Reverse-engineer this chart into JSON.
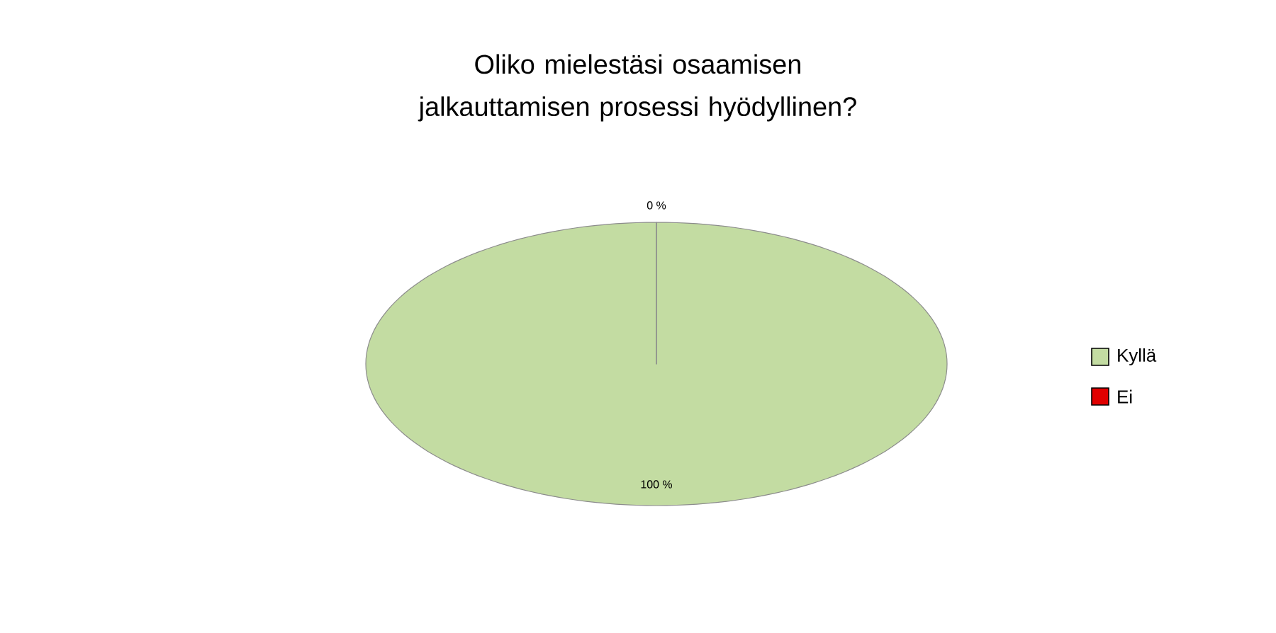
{
  "chart_data": {
    "type": "pie",
    "title": "Oliko mielestäsi osaamisen jalkauttamisen prosessi hyödyllinen?",
    "categories": [
      "Kyllä",
      "Ei"
    ],
    "values": [
      100,
      0
    ],
    "value_labels": [
      "100 %",
      "0 %"
    ],
    "colors": [
      "#c3dca2",
      "#e00000"
    ],
    "legend": "right"
  }
}
